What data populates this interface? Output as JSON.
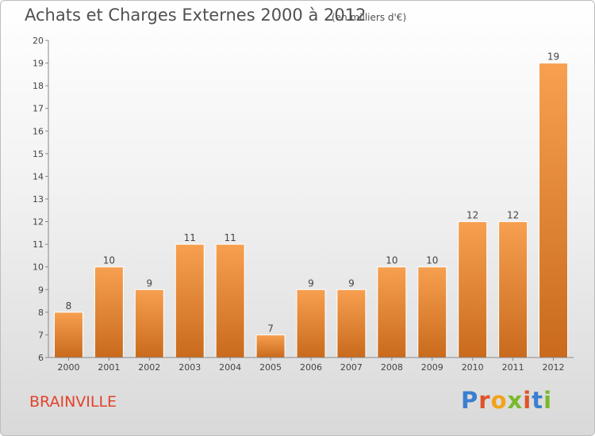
{
  "header": {
    "title": "Achats et Charges Externes 2000 à 2012",
    "subtitle": "(en milliers d'€)"
  },
  "footer": {
    "commune": "BRAINVILLE",
    "logo": "Proxiti"
  },
  "colors": {
    "bar_light": "#f7a050",
    "bar_dark": "#c96a1c",
    "axis": "#888888",
    "label_text": "#444444",
    "commune_text": "#e2432a"
  },
  "chart_data": {
    "type": "bar",
    "categories": [
      "2000",
      "2001",
      "2002",
      "2003",
      "2004",
      "2005",
      "2006",
      "2007",
      "2008",
      "2009",
      "2010",
      "2011",
      "2012"
    ],
    "values": [
      8,
      10,
      9,
      11,
      11,
      7,
      9,
      9,
      10,
      10,
      12,
      12,
      19
    ],
    "data_labels": [
      "8",
      "10",
      "9",
      "11",
      "11",
      "7",
      "9",
      "9",
      "10",
      "10",
      "12",
      "12",
      "19"
    ],
    "ylim": [
      6,
      20
    ],
    "yticks": [
      6,
      7,
      8,
      9,
      10,
      11,
      12,
      13,
      14,
      15,
      16,
      17,
      18,
      19,
      20
    ],
    "grid": false,
    "xlabel": "",
    "ylabel": ""
  }
}
